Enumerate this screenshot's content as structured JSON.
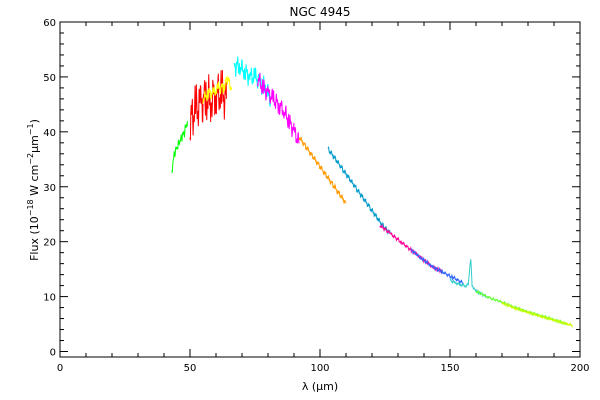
{
  "chart_data": {
    "type": "line",
    "title": "NGC 4945",
    "xlabel_prefix": "λ (",
    "xlabel_mu": "μ",
    "xlabel_suffix": "m)",
    "ylabel_prefix": "Flux (10",
    "ylabel_exp1": "−18",
    "ylabel_mid": " W cm",
    "ylabel_exp2": "−2",
    "ylabel_mu": "μ",
    "ylabel_unit": "m",
    "ylabel_exp3": "−1",
    "ylabel_close": ")",
    "xlim": [
      0,
      200
    ],
    "ylim": [
      -1,
      60
    ],
    "x_ticks": [
      0,
      50,
      100,
      150,
      200
    ],
    "y_ticks": [
      0,
      10,
      20,
      30,
      40,
      50,
      60
    ],
    "grid": false,
    "series": [
      {
        "color": "#00ff00",
        "noise": 1.0,
        "x": [
          43,
          44,
          45,
          46,
          47,
          48,
          49
        ],
        "y": [
          33,
          36,
          37,
          38,
          39,
          40,
          42
        ]
      },
      {
        "color": "#ff0000",
        "noise": 4.5,
        "x": [
          50,
          52,
          54,
          56,
          58,
          60,
          62,
          64
        ],
        "y": [
          42,
          44,
          45,
          46,
          46,
          47,
          47,
          46
        ]
      },
      {
        "color": "#ffff00",
        "noise": 1.2,
        "x": [
          55,
          57,
          59,
          61,
          63,
          64,
          66
        ],
        "y": [
          46,
          47,
          47,
          48,
          48,
          50,
          48
        ]
      },
      {
        "color": "#00ffff",
        "noise": 2.0,
        "x": [
          67,
          69,
          71,
          73,
          75,
          77,
          79,
          81
        ],
        "y": [
          52,
          52,
          51,
          50,
          50,
          49,
          48,
          46
        ]
      },
      {
        "color": "#ff00ff",
        "noise": 1.8,
        "x": [
          76,
          78,
          80,
          82,
          84,
          86,
          88,
          90,
          92
        ],
        "y": [
          50,
          48,
          47,
          46,
          45,
          44,
          42,
          40,
          38
        ]
      },
      {
        "color": "#ff9900",
        "noise": 0.6,
        "x": [
          92,
          95,
          98,
          101,
          104,
          107,
          110
        ],
        "y": [
          39,
          37,
          35,
          33,
          31,
          29,
          27
        ]
      },
      {
        "color": "#0099cc",
        "noise": 0.5,
        "x": [
          103,
          106,
          109,
          112,
          115,
          118,
          121,
          124,
          127
        ],
        "y": [
          37,
          35,
          33,
          31,
          29,
          27,
          25,
          23,
          21.5
        ]
      },
      {
        "color": "#ff0099",
        "noise": 0.35,
        "x": [
          123,
          127,
          131,
          135,
          139,
          143,
          147
        ],
        "y": [
          23,
          21.5,
          20,
          18.5,
          17,
          15.5,
          14.5
        ]
      },
      {
        "color": "#3366ff",
        "noise": 0.35,
        "x": [
          135,
          139,
          143,
          147,
          151,
          155
        ],
        "y": [
          18.5,
          17,
          15.5,
          14.5,
          13.5,
          12.5
        ]
      },
      {
        "color": "#33cccc",
        "noise": 0.3,
        "x": [
          150,
          152,
          154,
          156,
          157,
          158,
          158.5,
          159,
          160,
          162,
          164
        ],
        "y": [
          13,
          12.5,
          12.2,
          12,
          12.2,
          17,
          12,
          11.5,
          11,
          10.5,
          10
        ]
      },
      {
        "color": "#66ff33",
        "noise": 0.25,
        "x": [
          160,
          165,
          170,
          175,
          180,
          185,
          190,
          195
        ],
        "y": [
          11,
          9.8,
          9,
          8,
          7.2,
          6.5,
          5.8,
          5
        ]
      },
      {
        "color": "#ccff00",
        "noise": 0.25,
        "x": [
          170,
          175,
          180,
          185,
          190,
          195,
          197
        ],
        "y": [
          8.8,
          7.9,
          7.1,
          6.4,
          5.7,
          5,
          4.8
        ]
      }
    ]
  }
}
